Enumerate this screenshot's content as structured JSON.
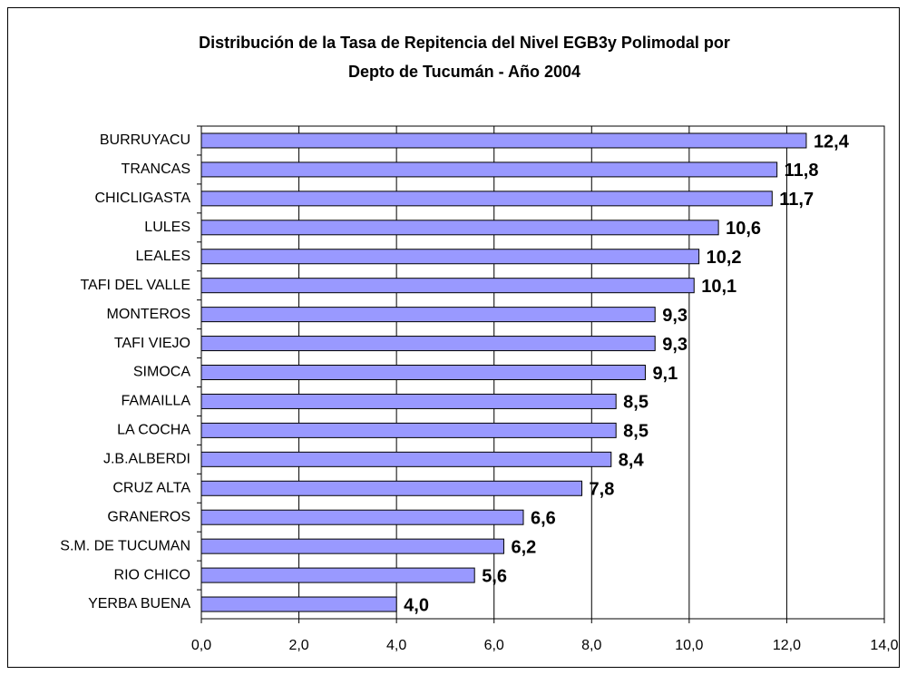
{
  "chart_data": {
    "type": "bar",
    "orientation": "horizontal",
    "title": [
      "Distribución de la Tasa de Repitencia del Nivel EGB3y Polimodal por",
      "Depto de Tucumán - Año 2004"
    ],
    "categories": [
      "BURRUYACU",
      "TRANCAS",
      "CHICLIGASTA",
      "LULES",
      "LEALES",
      "TAFI DEL VALLE",
      "MONTEROS",
      "TAFI VIEJO",
      "SIMOCA",
      "FAMAILLA",
      "LA COCHA",
      "J.B.ALBERDI",
      "CRUZ ALTA",
      "GRANEROS",
      "S.M. DE TUCUMAN",
      "RIO CHICO",
      "YERBA BUENA"
    ],
    "values": [
      12.4,
      11.8,
      11.7,
      10.6,
      10.2,
      10.1,
      9.3,
      9.3,
      9.1,
      8.5,
      8.5,
      8.4,
      7.8,
      6.6,
      6.2,
      5.6,
      4.0
    ],
    "value_labels": [
      "12,4",
      "11,8",
      "11,7",
      "10,6",
      "10,2",
      "10,1",
      "9,3",
      "9,3",
      "9,1",
      "8,5",
      "8,5",
      "8,4",
      "7,8",
      "6,6",
      "6,2",
      "5,6",
      "4,0"
    ],
    "color": "#9999ff",
    "xlim": [
      0,
      14
    ],
    "xticks": [
      {
        "value": 0,
        "label": "0,0"
      },
      {
        "value": 2,
        "label": "2,0"
      },
      {
        "value": 4,
        "label": "4,0"
      },
      {
        "value": 6,
        "label": "6,0"
      },
      {
        "value": 8,
        "label": "8,0"
      },
      {
        "value": 10,
        "label": "10,0"
      },
      {
        "value": 12,
        "label": "12,0"
      },
      {
        "value": 14,
        "label": "14,0"
      }
    ],
    "grid": true
  }
}
